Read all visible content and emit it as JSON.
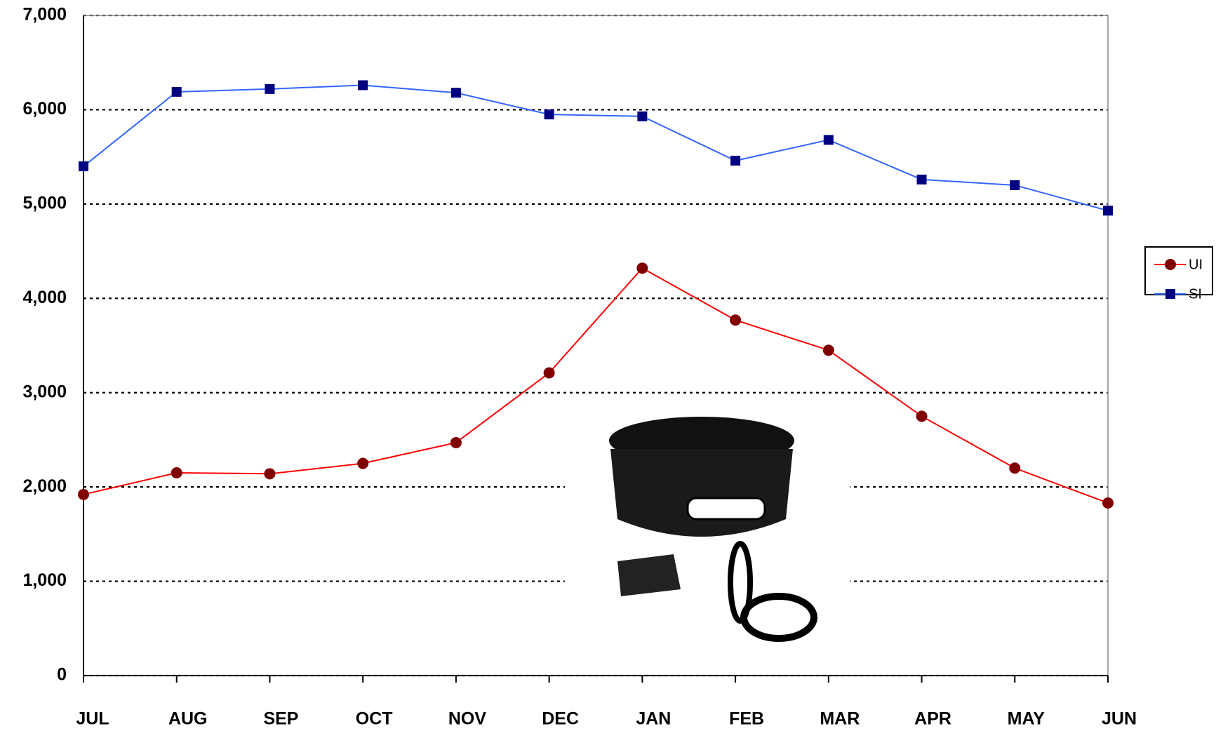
{
  "chart_data": {
    "type": "line",
    "categories": [
      "JUL",
      "AUG",
      "SEP",
      "OCT",
      "NOV",
      "DEC",
      "JAN",
      "FEB",
      "MAR",
      "APR",
      "MAY",
      "JUN"
    ],
    "series": [
      {
        "name": "UI",
        "color": "#ff0000",
        "marker_color": "#800000",
        "marker": "circle",
        "values": [
          1920,
          2150,
          2140,
          2250,
          2470,
          3210,
          4320,
          3770,
          3450,
          2750,
          2200,
          1830
        ]
      },
      {
        "name": "SI",
        "color": "#3366ff",
        "marker_color": "#000080",
        "marker": "square",
        "values": [
          5400,
          6190,
          6220,
          6260,
          6180,
          5950,
          5930,
          5460,
          5680,
          5260,
          5200,
          4930
        ]
      }
    ],
    "ylim": [
      0,
      7000
    ],
    "yticks": [
      0,
      {
        "value": 1000,
        "label": "1,000"
      },
      {
        "value": 2000,
        "label": "2,000"
      },
      {
        "value": 3000,
        "label": "3,000"
      },
      {
        "value": 4000,
        "label": "4,000"
      },
      {
        "value": 5000,
        "label": "5,000"
      },
      {
        "value": 6000,
        "label": "6,000"
      },
      {
        "value": 7000,
        "label": "7,000"
      }
    ],
    "grid": true,
    "legend": "right"
  }
}
